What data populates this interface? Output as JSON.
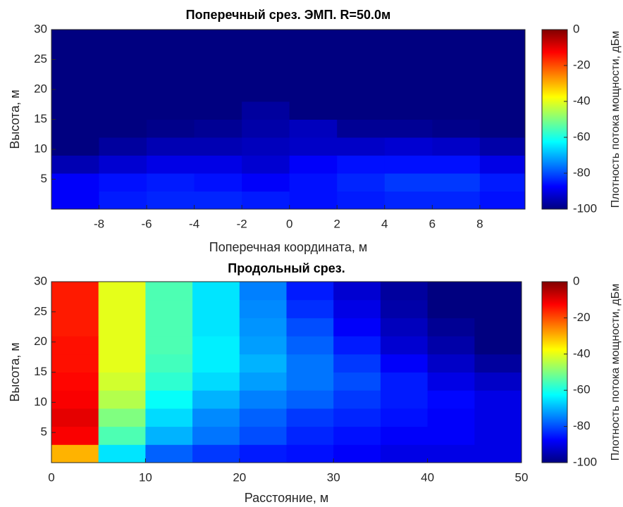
{
  "chart_data": [
    {
      "type": "heatmap",
      "title": "Поперечный срез. ЭМП. R=50.0м",
      "xlabel": "Поперечная координата, м",
      "ylabel": "Высота, м",
      "colormap": "jet",
      "x": [
        -9,
        -7,
        -5,
        -3,
        -1,
        1,
        3,
        5,
        7,
        9
      ],
      "y": [
        1.5,
        4.5,
        7.5,
        10.5,
        13.5,
        16.5,
        19.5,
        22.5,
        25.5,
        28.5
      ],
      "z": [
        [
          -88,
          -85,
          -84,
          -84,
          -85,
          -86,
          -85,
          -84,
          -84,
          -86
        ],
        [
          -88,
          -86,
          -85,
          -86,
          -88,
          -86,
          -84,
          -82,
          -82,
          -85
        ],
        [
          -95,
          -92,
          -90,
          -90,
          -92,
          -88,
          -86,
          -86,
          -86,
          -90
        ],
        [
          -100,
          -97,
          -95,
          -95,
          -94,
          -93,
          -93,
          -92,
          -93,
          -96
        ],
        [
          -100,
          -100,
          -99,
          -98,
          -96,
          -94,
          -98,
          -98,
          -99,
          -100
        ],
        [
          -100,
          -100,
          -100,
          -100,
          -97,
          -100,
          -100,
          -100,
          -100,
          -100
        ],
        [
          -100,
          -100,
          -100,
          -100,
          -100,
          -100,
          -100,
          -100,
          -100,
          -100
        ],
        [
          -100,
          -100,
          -100,
          -100,
          -100,
          -100,
          -100,
          -100,
          -100,
          -100
        ],
        [
          -100,
          -100,
          -100,
          -100,
          -100,
          -100,
          -100,
          -100,
          -100,
          -100
        ],
        [
          -100,
          -100,
          -100,
          -100,
          -100,
          -100,
          -100,
          -100,
          -100,
          -100
        ]
      ],
      "xlim": [
        -10,
        9.9
      ],
      "xticks": [
        -8,
        -6,
        -4,
        -2,
        0,
        2,
        4,
        6,
        8
      ],
      "ylim": [
        0,
        30
      ],
      "yticks": [
        5,
        10,
        15,
        20,
        25,
        30
      ],
      "colorbar": {
        "label": "Плотность потока мощности, дБм",
        "lim": [
          -100,
          0
        ],
        "ticks": [
          0,
          -20,
          -40,
          -60,
          -80,
          -100
        ]
      }
    },
    {
      "type": "heatmap",
      "title": "Продольный срез.",
      "xlabel": "Расстояние, м",
      "ylabel": "Высота, м",
      "colormap": "jet",
      "x": [
        2.5,
        7.5,
        12.5,
        17.5,
        22.5,
        27.5,
        32.5,
        37.5,
        42.5,
        47.5
      ],
      "y": [
        1.5,
        4.5,
        7.5,
        10.5,
        13.5,
        16.5,
        19.5,
        22.5,
        25.5,
        28.5
      ],
      "z": [
        [
          -30,
          -65,
          -78,
          -82,
          -85,
          -86,
          -88,
          -90,
          -90,
          -90
        ],
        [
          -12,
          -55,
          -70,
          -76,
          -80,
          -84,
          -86,
          -88,
          -88,
          -90
        ],
        [
          -10,
          -50,
          -66,
          -74,
          -78,
          -82,
          -84,
          -86,
          -88,
          -90
        ],
        [
          -12,
          -45,
          -62,
          -70,
          -75,
          -78,
          -82,
          -85,
          -87,
          -90
        ],
        [
          -13,
          -42,
          -58,
          -66,
          -72,
          -76,
          -80,
          -85,
          -90,
          -93
        ],
        [
          -14,
          -40,
          -56,
          -64,
          -70,
          -76,
          -82,
          -88,
          -93,
          -97
        ],
        [
          -14,
          -40,
          -55,
          -64,
          -72,
          -78,
          -85,
          -92,
          -96,
          -100
        ],
        [
          -15,
          -40,
          -55,
          -65,
          -73,
          -80,
          -88,
          -94,
          -98,
          -100
        ],
        [
          -15,
          -40,
          -55,
          -65,
          -74,
          -83,
          -90,
          -96,
          -100,
          -100
        ],
        [
          -15,
          -40,
          -55,
          -65,
          -75,
          -85,
          -92,
          -97,
          -100,
          -100
        ]
      ],
      "xlim": [
        0,
        50
      ],
      "xticks": [
        0,
        10,
        20,
        30,
        40,
        50
      ],
      "ylim": [
        0,
        30
      ],
      "yticks": [
        5,
        10,
        15,
        20,
        25,
        30
      ],
      "colorbar": {
        "label": "Плотность потока мощности, дБм",
        "lim": [
          -100,
          0
        ],
        "ticks": [
          0,
          -20,
          -40,
          -60,
          -80,
          -100
        ]
      }
    }
  ]
}
